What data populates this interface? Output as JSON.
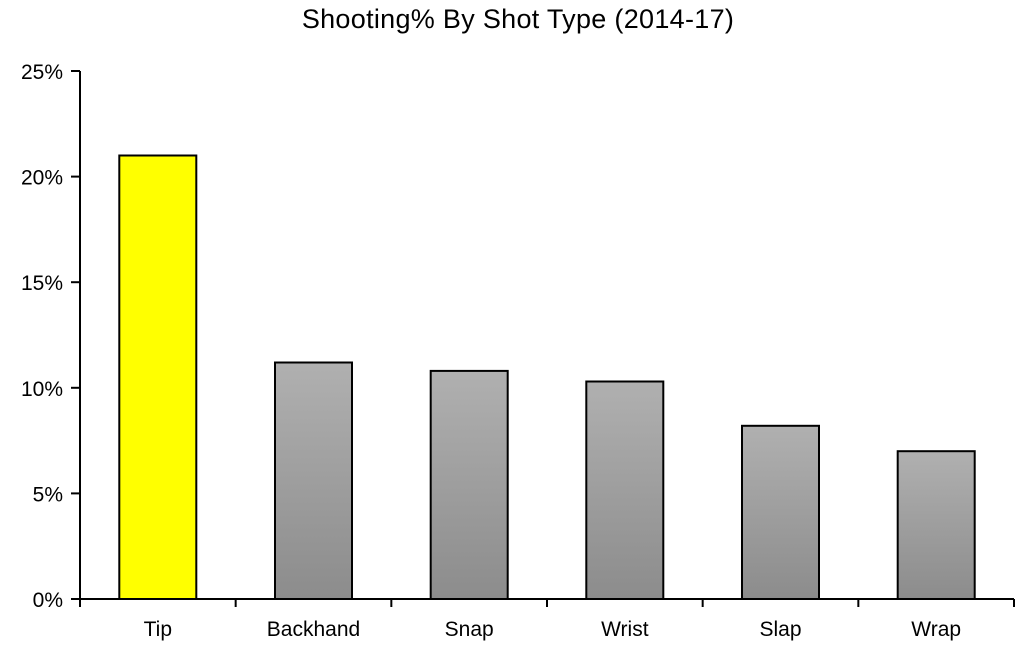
{
  "chart_data": {
    "type": "bar",
    "title": "Shooting% By Shot Type (2014-17)",
    "xlabel": "",
    "ylabel": "",
    "categories": [
      "Tip",
      "Backhand",
      "Snap",
      "Wrist",
      "Slap",
      "Wrap"
    ],
    "values": [
      21.0,
      11.2,
      10.8,
      10.3,
      8.2,
      7.0
    ],
    "ylim": [
      0,
      25
    ],
    "yticks": [
      0,
      5,
      10,
      15,
      20,
      25
    ],
    "ytick_labels": [
      "0%",
      "5%",
      "10%",
      "15%",
      "20%",
      "25%"
    ],
    "grid": false,
    "legend": "none",
    "colors": {
      "highlight": "#ffff00",
      "bar_top": "#b0b0b0",
      "bar_bottom": "#8c8c8c",
      "outline": "#000000"
    },
    "highlight_index": 0
  }
}
